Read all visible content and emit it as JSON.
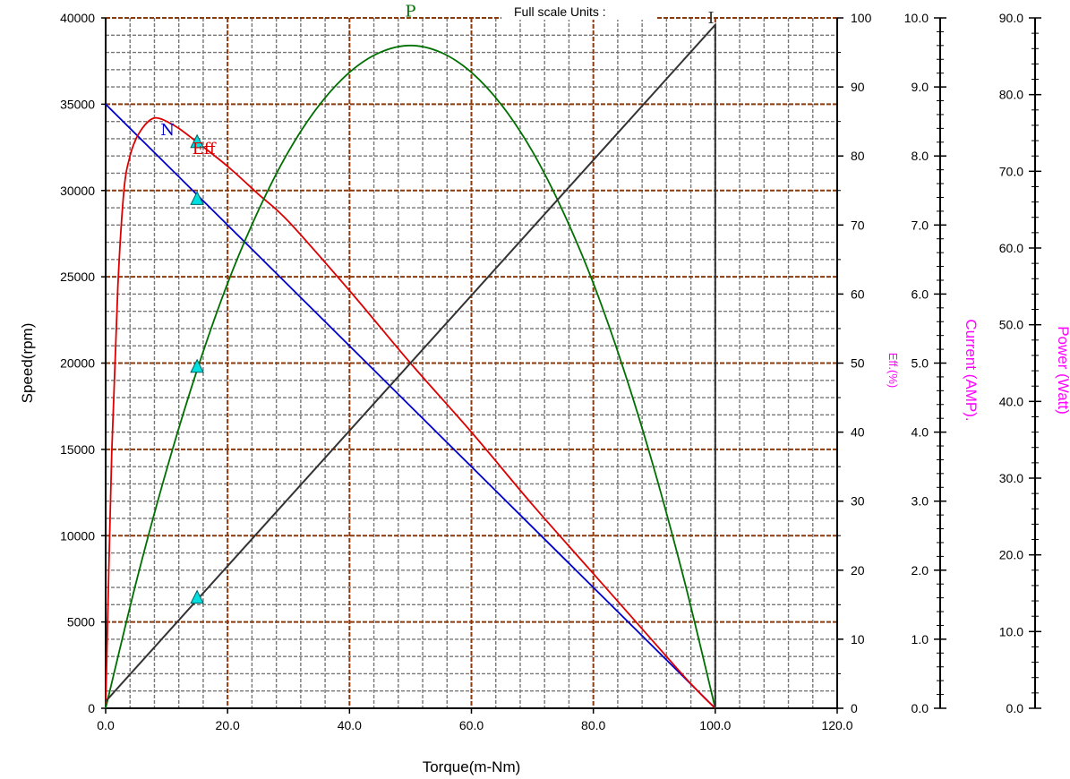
{
  "header": {
    "text": "Full scale Units :"
  },
  "chart_data": {
    "type": "line",
    "x_axis": {
      "label": "Torque(m-Nm)",
      "range": [
        0,
        120
      ],
      "ticks": [
        0,
        20,
        40,
        60,
        80,
        100,
        120
      ],
      "tick_labels": [
        "0.0",
        "20.0",
        "40.0",
        "60.0",
        "80.0",
        "100.0",
        "120.0"
      ],
      "major_step": 20,
      "minor_step": 4
    },
    "y_axes": [
      {
        "id": "speed",
        "label": "Speed(rpm)",
        "side": "left",
        "range": [
          0,
          40000
        ],
        "ticks": [
          0,
          5000,
          10000,
          15000,
          20000,
          25000,
          30000,
          35000,
          40000
        ],
        "tick_labels": [
          "0",
          "5000",
          "10000",
          "15000",
          "20000",
          "25000",
          "30000",
          "35000",
          "40000"
        ],
        "minor_step": 1000
      },
      {
        "id": "eff",
        "label": "Eff.(%)",
        "side": "right",
        "range": [
          0,
          100
        ],
        "ticks": [
          0,
          10,
          20,
          30,
          40,
          50,
          60,
          70,
          80,
          90,
          100
        ],
        "tick_labels": [
          "0",
          "10",
          "20",
          "30",
          "40",
          "50",
          "60",
          "70",
          "80",
          "90",
          "100"
        ]
      },
      {
        "id": "current",
        "label": "Current (AMP).",
        "side": "right",
        "range": [
          0,
          10
        ],
        "ticks": [
          0,
          1,
          2,
          3,
          4,
          5,
          6,
          7,
          8,
          9,
          10
        ],
        "tick_labels": [
          "0.0",
          "1.0",
          "2.0",
          "3.0",
          "4.0",
          "5.0",
          "6.0",
          "7.0",
          "8.0",
          "9.0",
          "10.0"
        ]
      },
      {
        "id": "power",
        "label": "Power (Watt)",
        "side": "right",
        "range": [
          0,
          90
        ],
        "ticks": [
          0,
          10,
          20,
          30,
          40,
          50,
          60,
          70,
          80,
          90
        ],
        "tick_labels": [
          "0.0",
          "10.0",
          "20.0",
          "30.0",
          "40.0",
          "50.0",
          "60.0",
          "70.0",
          "80.0",
          "90.0"
        ]
      }
    ],
    "grid": true,
    "series": [
      {
        "name": "N",
        "axis": "speed",
        "color": "#0000cc",
        "x": [
          0,
          100
        ],
        "y": [
          35000,
          0
        ]
      },
      {
        "name": "Eff",
        "axis": "eff",
        "color": "#dd0000",
        "x": [
          0,
          1,
          2,
          3,
          4,
          5,
          6,
          7,
          8,
          9,
          10,
          12,
          15,
          20,
          25,
          30,
          40,
          50,
          60,
          70,
          80,
          90,
          95,
          98,
          100
        ],
        "y": [
          0,
          37,
          61,
          75,
          80,
          82.5,
          84,
          85,
          85.5,
          85.4,
          85,
          84,
          82,
          78.5,
          74.5,
          70.5,
          60.5,
          50,
          40,
          29.5,
          19.5,
          9.5,
          4.5,
          1.7,
          0
        ]
      },
      {
        "name": "P",
        "axis": "power",
        "color": "#007000",
        "x": [
          0,
          5,
          10,
          15,
          20,
          25,
          30,
          35,
          40,
          45,
          50,
          55,
          60,
          65,
          70,
          75,
          80,
          85,
          90,
          95,
          100
        ],
        "y": [
          0,
          16.4,
          31.1,
          44.1,
          55.4,
          64.8,
          72.6,
          78.6,
          82.9,
          85.5,
          86.4,
          85.5,
          82.9,
          78.6,
          72.6,
          64.8,
          55.4,
          44.1,
          31.1,
          16.4,
          0
        ]
      },
      {
        "name": "I",
        "axis": "current",
        "color": "#333333",
        "x": [
          0,
          100,
          100
        ],
        "y": [
          0.1,
          9.9,
          0
        ]
      }
    ],
    "markers": {
      "color": "#00e0e0",
      "points": [
        {
          "axis": "eff",
          "x": 15,
          "y": 82
        },
        {
          "axis": "speed",
          "x": 15,
          "y": 29500
        },
        {
          "axis": "power",
          "x": 15,
          "y": 44.5
        },
        {
          "axis": "current",
          "x": 15,
          "y": 1.6
        }
      ]
    }
  }
}
